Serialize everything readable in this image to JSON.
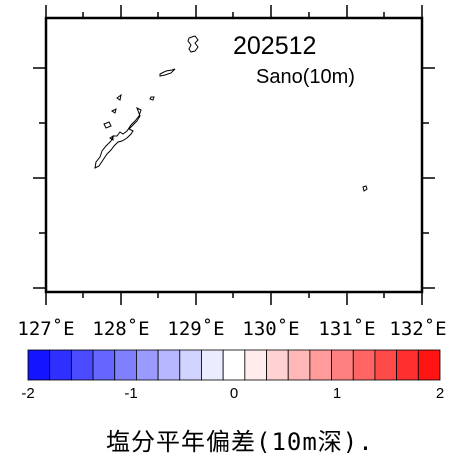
{
  "map": {
    "title": "202512",
    "subtitle": "Sano(10m)",
    "lon_labels": [
      "127˚E",
      "128˚E",
      "129˚E",
      "130˚E",
      "131˚E",
      "132˚E"
    ]
  },
  "colorbar": {
    "min_label": "-2",
    "tick_labels": [
      "-2",
      "-1",
      "0",
      "1",
      "2"
    ],
    "colors": [
      "#1414ff",
      "#2f2fff",
      "#4a4aff",
      "#6565ff",
      "#8080ff",
      "#9b9bff",
      "#b7b7ff",
      "#d2d2ff",
      "#ececff",
      "#ffffff",
      "#ffecec",
      "#ffd2d2",
      "#ffb7b7",
      "#ff9b9b",
      "#ff8080",
      "#ff6565",
      "#ff4a4a",
      "#ff2f2f",
      "#ff1414"
    ]
  },
  "caption": "塩分平年偏差(10m深)."
}
